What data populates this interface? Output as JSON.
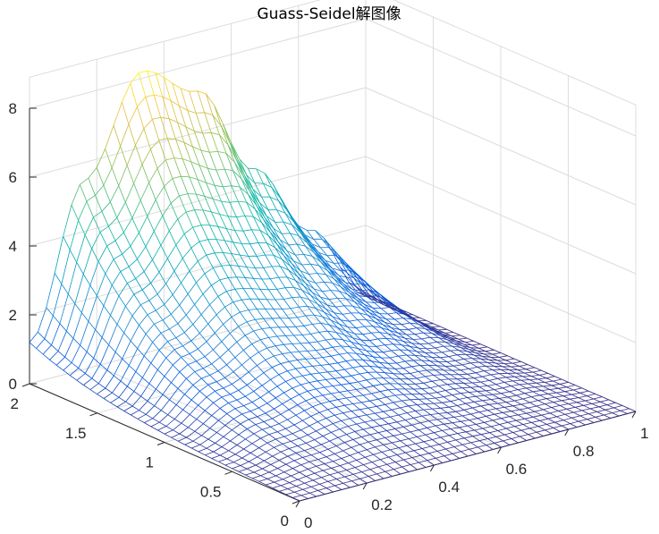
{
  "chart_data": {
    "type": "surface-mesh",
    "title": "Guass-Seidel解图像",
    "x_axis": {
      "label": "",
      "lim": [
        0,
        1
      ],
      "ticks": [
        0,
        0.2,
        0.4,
        0.6,
        0.8,
        1
      ],
      "tick_labels": [
        "0",
        "0.2",
        "0.4",
        "0.6",
        "0.8",
        "1"
      ]
    },
    "y_axis": {
      "label": "",
      "lim": [
        0,
        2
      ],
      "ticks": [
        0,
        0.5,
        1,
        1.5,
        2
      ],
      "tick_labels": [
        "0",
        "0.5",
        "1",
        "1.5",
        "2"
      ]
    },
    "z_axis": {
      "label": "",
      "lim": [
        0,
        8
      ],
      "ticks": [
        0,
        2,
        4,
        6,
        8
      ],
      "tick_labels": [
        "0",
        "2",
        "4",
        "6",
        "8"
      ]
    },
    "grid": true,
    "colormap": "parula",
    "mesh": {
      "nx": 40,
      "ny": 40
    },
    "surface": {
      "z_at_corner_x0_y0": 0,
      "z_at_corner_x0_y2": 1.2,
      "z_at_corner_x1_y0": 0,
      "z_at_corner_x1_y2": 0,
      "z_peak": 8.2,
      "z_peak_at": [
        0.35,
        2
      ],
      "z_at_x0_y2_to_x1_y2": [
        1.2,
        5.5,
        8.2,
        7.2,
        4.5,
        2.3,
        0
      ]
    },
    "colors": {
      "axis": "#262626",
      "grid": "#dcdcdc"
    }
  }
}
